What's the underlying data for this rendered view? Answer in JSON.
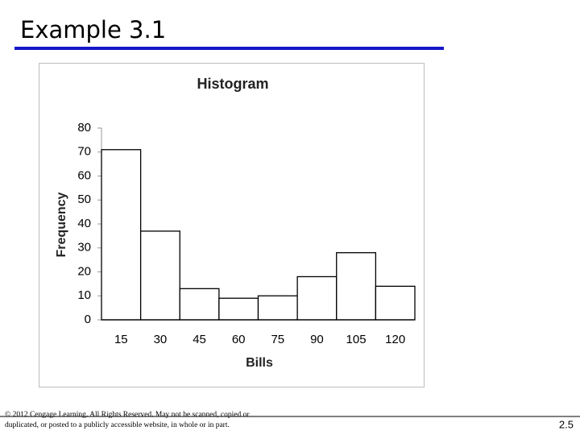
{
  "slide": {
    "title": "Example 3.1",
    "copyright": [
      "© 2012 Cengage Learning. All Rights Reserved. May not be scanned, copied or",
      "duplicated, or posted to a publicly accessible website, in whole or in part."
    ],
    "page_number": "2.5"
  },
  "chart_data": {
    "type": "bar",
    "title": "Histogram",
    "x_label": "Bills",
    "y_label": "Frequency",
    "categories": [
      "15",
      "30",
      "45",
      "60",
      "75",
      "90",
      "105",
      "120"
    ],
    "values": [
      71,
      37,
      13,
      9,
      10,
      18,
      28,
      14
    ],
    "color": "#ffffff",
    "edge_color": "#000000",
    "ylim": [
      0,
      80
    ],
    "yticks": [
      0,
      10,
      20,
      30,
      40,
      50,
      60,
      70,
      80
    ],
    "grid": false
  }
}
